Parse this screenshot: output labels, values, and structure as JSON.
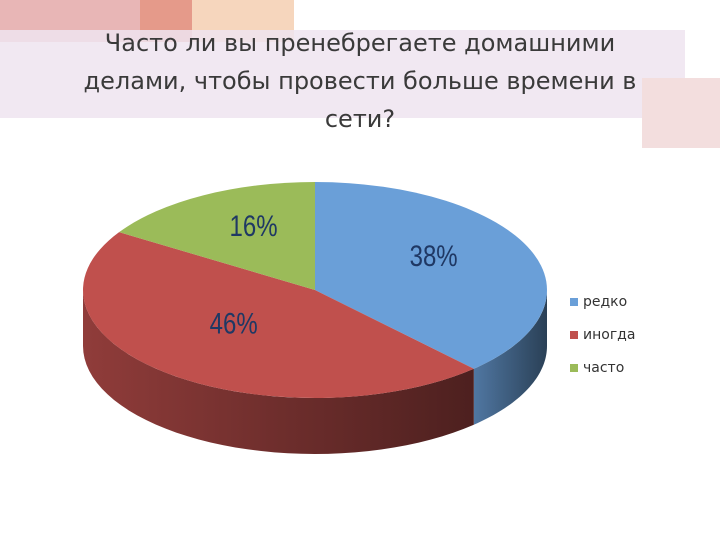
{
  "chart_data": {
    "type": "pie",
    "title": "Часто ли вы пренебрегаете домашними делами, чтобы провести больше времени в сети?",
    "categories": [
      "редко",
      "иногда",
      "часто"
    ],
    "values": [
      38,
      46,
      16
    ],
    "value_labels": [
      "38%",
      "46%",
      "16%"
    ],
    "colors": [
      "#6a9fd8",
      "#c0504d",
      "#9bbb59"
    ],
    "legend": "right"
  }
}
